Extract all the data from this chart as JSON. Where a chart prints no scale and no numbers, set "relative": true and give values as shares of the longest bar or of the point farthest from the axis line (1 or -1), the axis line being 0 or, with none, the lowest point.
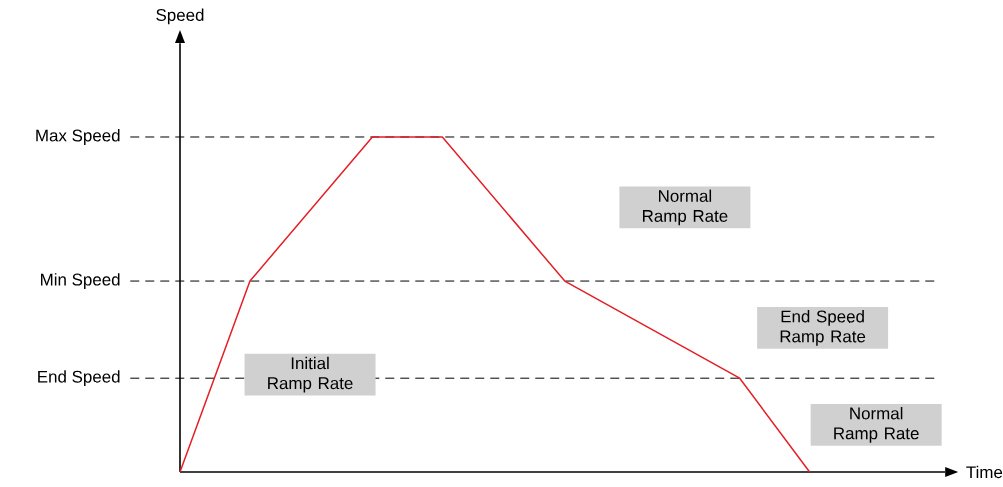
{
  "chart_data": {
    "type": "line",
    "relative": true,
    "categories": [
      null,
      null,
      null,
      null,
      null,
      null,
      null,
      null,
      null,
      null,
      null,
      null,
      null,
      null,
      null,
      null,
      null,
      null,
      null,
      null,
      null,
      null,
      null,
      null,
      null,
      null,
      null,
      null,
      null,
      null,
      null,
      null,
      null,
      null,
      null,
      null,
      null
    ],
    "series": [
      {
        "color": "#e41e26",
        "values": [
          0,
          null,
          null,
          null,
          0.57,
          null,
          null,
          null,
          null,
          null,
          null,
          1,
          null,
          null,
          null,
          1,
          null,
          null,
          null,
          null,
          null,
          null,
          0.57,
          null,
          null,
          null,
          null,
          null,
          null,
          null,
          null,
          null,
          0.28,
          null,
          null,
          null,
          0
        ]
      }
    ],
    "ref_lines": [
      {
        "axis": "y",
        "value": 1,
        "label": "Max Speed",
        "line_style": "dashed"
      },
      {
        "axis": "y",
        "value": 0.57,
        "label": "Min Speed",
        "line_style": "dashed"
      },
      {
        "axis": "y",
        "value": 0.28,
        "label": "End Speed",
        "line_style": "dashed"
      }
    ],
    "annotations": [
      "Speed",
      "Initial Ramp Rate",
      "Normal Ramp Rate",
      "End Speed Ramp Rate",
      "Normal Ramp Rate",
      "Time"
    ],
    "marker": "none",
    "line_style": "solid"
  }
}
